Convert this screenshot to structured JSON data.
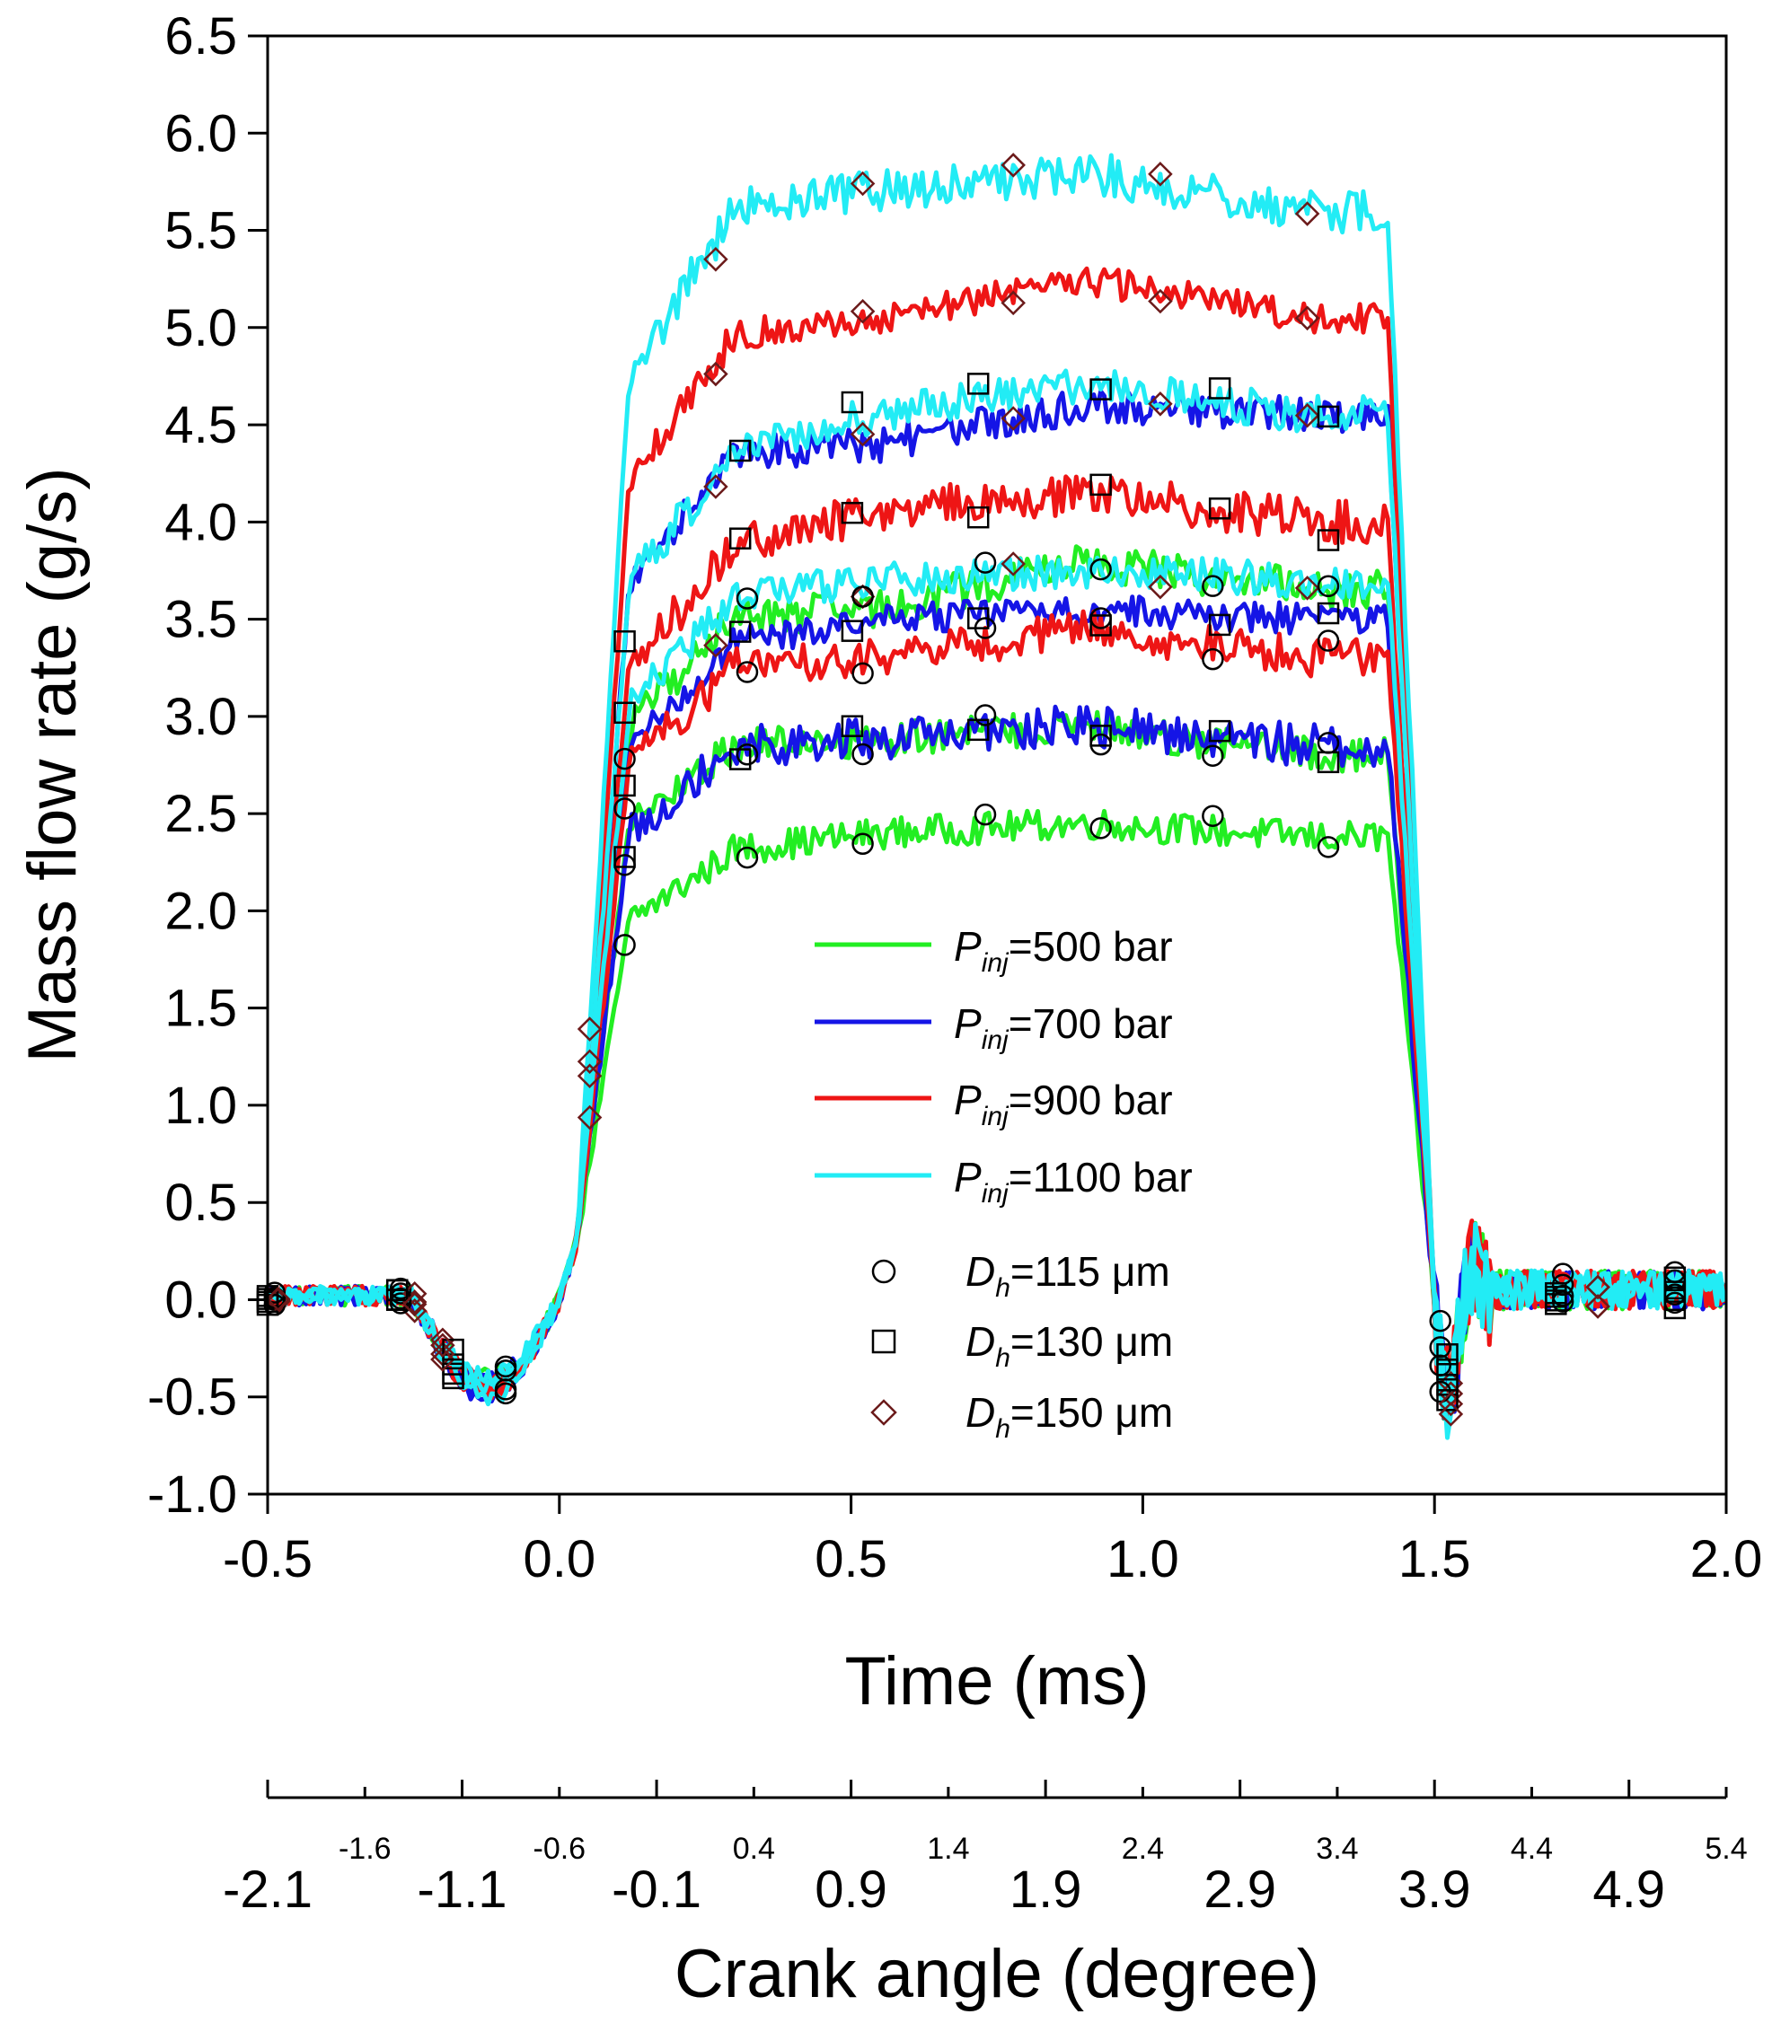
{
  "chart_data": {
    "type": "line",
    "title": "",
    "xlabel": "Time (ms)",
    "ylabel": "Mass flow rate (g/s)",
    "x2label": "Crank angle (degree)",
    "xlim": [
      -0.5,
      2.0
    ],
    "ylim": [
      -1.0,
      6.5
    ],
    "xticks": [
      "-0.5",
      "0.0",
      "0.5",
      "1.0",
      "1.5",
      "2.0"
    ],
    "yticks": [
      "-1.0",
      "-0.5",
      "0.0",
      "0.5",
      "1.0",
      "1.5",
      "2.0",
      "2.5",
      "3.0",
      "3.5",
      "4.0",
      "4.5",
      "5.0",
      "5.5",
      "6.0",
      "6.5"
    ],
    "crank_ticks_major": [
      "-2.1",
      "-1.1",
      "-0.1",
      "0.9",
      "1.9",
      "2.9",
      "3.9",
      "4.9"
    ],
    "crank_ticks_minor": [
      "-1.6",
      "-0.6",
      "0.4",
      "1.4",
      "2.4",
      "3.4",
      "4.4",
      "5.4"
    ],
    "legend": {
      "lines": [
        {
          "prefix": "P",
          "sub": "inj",
          "suffix": "=500 bar",
          "color": "#22ee22"
        },
        {
          "prefix": "P",
          "sub": "inj",
          "suffix": "=700 bar",
          "color": "#1515e6"
        },
        {
          "prefix": "P",
          "sub": "inj",
          "suffix": "=900 bar",
          "color": "#ee1515"
        },
        {
          "prefix": "P",
          "sub": "inj",
          "suffix": "=1100 bar",
          "color": "#22ecf5"
        }
      ],
      "markers": [
        {
          "prefix": "D",
          "sub": "h",
          "suffix": "=115 μm",
          "symbol": "circle"
        },
        {
          "prefix": "D",
          "sub": "h",
          "suffix": "=130 μm",
          "symbol": "square"
        },
        {
          "prefix": "D",
          "sub": "h",
          "suffix": "=150 μm",
          "symbol": "diamond"
        }
      ],
      "position": "center"
    },
    "series": [
      {
        "name": "Pinj=500 bar, Dh=115 μm",
        "color": "#22ee22",
        "marker": "circle",
        "plateau": [
          2.3,
          2.4,
          2.45,
          2.38
        ]
      },
      {
        "name": "Pinj=500 bar, Dh=130 μm",
        "color": "#22ee22",
        "marker": "square",
        "plateau": [
          2.85,
          2.88,
          2.95,
          2.8
        ]
      },
      {
        "name": "Pinj=500 bar, Dh=150 μm",
        "color": "#22ee22",
        "marker": "diamond",
        "plateau": [
          3.5,
          3.55,
          3.8,
          3.65
        ]
      },
      {
        "name": "Pinj=700 bar, Dh=115 μm",
        "color": "#1515e6",
        "marker": "circle",
        "plateau": [
          2.85,
          2.88,
          2.95,
          2.85
        ]
      },
      {
        "name": "Pinj=700 bar, Dh=130 μm",
        "color": "#1515e6",
        "marker": "square",
        "plateau": [
          3.35,
          3.5,
          3.55,
          3.5
        ]
      },
      {
        "name": "Pinj=700 bar, Dh=150 μm",
        "color": "#1515e6",
        "marker": "diamond",
        "plateau": [
          4.35,
          4.4,
          4.6,
          4.55
        ]
      },
      {
        "name": "Pinj=900 bar, Dh=115 μm",
        "color": "#ee1515",
        "marker": "circle",
        "plateau": [
          3.25,
          3.3,
          3.45,
          3.3
        ]
      },
      {
        "name": "Pinj=900 bar, Dh=130 μm",
        "color": "#ee1515",
        "marker": "square",
        "plateau": [
          3.85,
          4.05,
          4.15,
          4.0
        ]
      },
      {
        "name": "Pinj=900 bar, Dh=150 μm",
        "color": "#ee1515",
        "marker": "diamond",
        "plateau": [
          4.95,
          5.05,
          5.25,
          5.05
        ]
      },
      {
        "name": "Pinj=1100 bar, Dh=115 μm",
        "color": "#22ecf5",
        "marker": "circle",
        "plateau": [
          3.6,
          3.7,
          3.75,
          3.7
        ]
      },
      {
        "name": "Pinj=1100 bar, Dh=130 μm",
        "color": "#22ecf5",
        "marker": "square",
        "plateau": [
          4.35,
          4.55,
          4.7,
          4.55
        ]
      },
      {
        "name": "Pinj=1100 bar, Dh=150 μm",
        "color": "#22ecf5",
        "marker": "diamond",
        "plateau": [
          5.6,
          5.7,
          5.8,
          5.6
        ]
      }
    ],
    "plateau_times_ms": [
      0.25,
      0.55,
      0.9,
      1.3
    ],
    "rise_start_ms": 0.02,
    "fall_end_ms": 1.5
  }
}
